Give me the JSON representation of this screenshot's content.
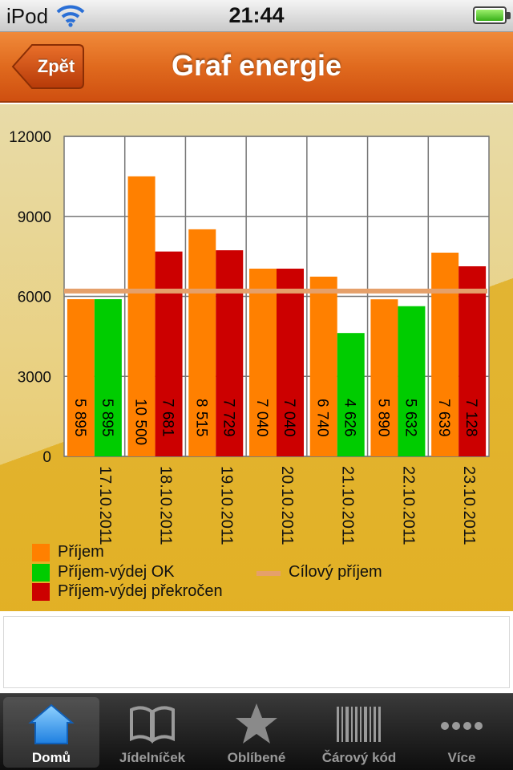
{
  "status_bar": {
    "carrier": "iPod",
    "time": "21:44"
  },
  "nav": {
    "back_label": "Zpět",
    "title": "Graf energie"
  },
  "chart_data": {
    "type": "bar",
    "title": "",
    "xlabel": "",
    "ylabel": "",
    "ylim": [
      0,
      12000
    ],
    "yticks": [
      0,
      3000,
      6000,
      9000,
      12000
    ],
    "categories": [
      "17.10.2011",
      "18.10.2011",
      "19.10.2011",
      "20.10.2011",
      "21.10.2011",
      "22.10.2011",
      "23.10.2011"
    ],
    "bars": [
      [
        {
          "value": 5895,
          "label": "5 895",
          "series": "income"
        },
        {
          "value": 5895,
          "label": "5 895",
          "series": "ok"
        }
      ],
      [
        {
          "value": 10500,
          "label": "10 500",
          "series": "income"
        },
        {
          "value": 7681,
          "label": "7 681",
          "series": "exceeded"
        }
      ],
      [
        {
          "value": 8515,
          "label": "8 515",
          "series": "income"
        },
        {
          "value": 7729,
          "label": "7 729",
          "series": "exceeded"
        }
      ],
      [
        {
          "value": 7040,
          "label": "7 040",
          "series": "income"
        },
        {
          "value": 7040,
          "label": "7 040",
          "series": "exceeded"
        }
      ],
      [
        {
          "value": 6740,
          "label": "6 740",
          "series": "income"
        },
        {
          "value": 4626,
          "label": "4 626",
          "series": "ok"
        }
      ],
      [
        {
          "value": 5890,
          "label": "5 890",
          "series": "income"
        },
        {
          "value": 5632,
          "label": "5 632",
          "series": "ok"
        }
      ],
      [
        {
          "value": 7639,
          "label": "7 639",
          "series": "income"
        },
        {
          "value": 7128,
          "label": "7 128",
          "series": "exceeded"
        }
      ]
    ],
    "series_colors": {
      "income": "#ff8000",
      "ok": "#00cc00",
      "exceeded": "#cc0000",
      "target": "#e5a06a"
    },
    "target_value": 6200,
    "grid": true,
    "legend": {
      "placement": "bottom",
      "items": [
        {
          "key": "income",
          "label": "Příjem"
        },
        {
          "key": "ok",
          "label": "Příjem-výdej OK"
        },
        {
          "key": "exceeded",
          "label": "Příjem-výdej překročen"
        },
        {
          "key": "target",
          "label": "Cílový příjem"
        }
      ]
    }
  },
  "tabs": [
    {
      "label": "Domů",
      "icon": "home-icon",
      "active": true
    },
    {
      "label": "Jídelníček",
      "icon": "book-icon",
      "active": false
    },
    {
      "label": "Oblíbené",
      "icon": "star-icon",
      "active": false
    },
    {
      "label": "Čárový kód",
      "icon": "barcode-icon",
      "active": false
    },
    {
      "label": "Více",
      "icon": "more-icon",
      "active": false
    }
  ]
}
